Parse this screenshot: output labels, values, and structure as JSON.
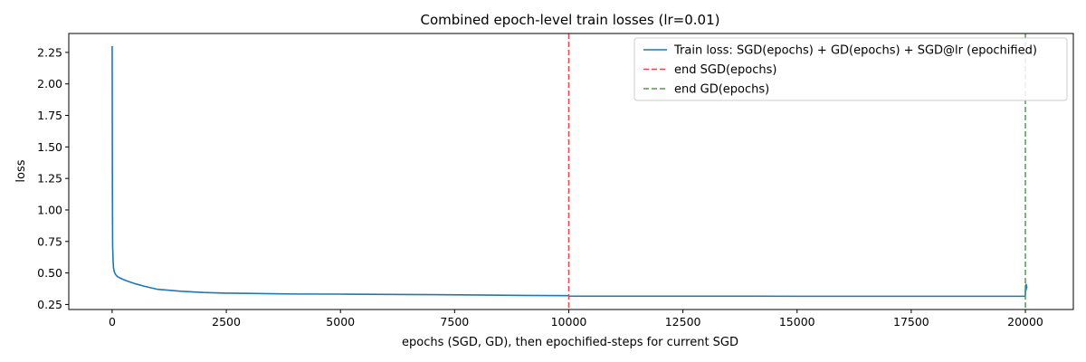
{
  "chart_data": {
    "type": "line",
    "title": "Combined epoch-level train losses (lr=0.01)",
    "xlabel": "epochs (SGD, GD), then epochified-steps for current SGD",
    "ylabel": "loss",
    "xlim": [
      -950,
      21050
    ],
    "ylim": [
      0.21,
      2.4
    ],
    "x_ticks": [
      0,
      2500,
      5000,
      7500,
      10000,
      12500,
      15000,
      17500,
      20000
    ],
    "y_ticks": [
      0.25,
      0.5,
      0.75,
      1.0,
      1.25,
      1.5,
      1.75,
      2.0,
      2.25
    ],
    "x_tick_labels": [
      "0",
      "2500",
      "5000",
      "7500",
      "10000",
      "12500",
      "15000",
      "17500",
      "20000"
    ],
    "y_tick_labels": [
      "0.25",
      "0.50",
      "0.75",
      "1.00",
      "1.25",
      "1.50",
      "1.75",
      "2.00",
      "2.25"
    ],
    "grid": false,
    "legend_position": "top-right",
    "series": [
      {
        "name": "Train loss: SGD(epochs) + GD(epochs) + SGD@lr (epochified)",
        "color": "#1f77b4",
        "style": "solid",
        "x": [
          0,
          5,
          10,
          20,
          30,
          50,
          80,
          120,
          200,
          300,
          500,
          700,
          1000,
          1500,
          2000,
          2500,
          3000,
          3500,
          4000,
          5000,
          6000,
          7000,
          8000,
          9000,
          9990,
          10000,
          11000,
          12000,
          13000,
          14000,
          15000,
          16000,
          17000,
          18000,
          19000,
          19990,
          20000,
          20005,
          20010,
          20015,
          20020,
          20025,
          20030
        ],
        "y": [
          2.3,
          1.2,
          0.72,
          0.6,
          0.54,
          0.505,
          0.485,
          0.47,
          0.455,
          0.44,
          0.415,
          0.395,
          0.37,
          0.355,
          0.345,
          0.34,
          0.338,
          0.335,
          0.333,
          0.332,
          0.33,
          0.328,
          0.325,
          0.322,
          0.32,
          0.316,
          0.316,
          0.316,
          0.316,
          0.316,
          0.315,
          0.315,
          0.315,
          0.315,
          0.315,
          0.315,
          0.33,
          0.4,
          0.36,
          0.41,
          0.37,
          0.4,
          0.38
        ]
      },
      {
        "name": "end SGD(epochs)",
        "color": "#e8474e",
        "style": "dashed",
        "vline_x": 10000
      },
      {
        "name": "end GD(epochs)",
        "color": "#4e9e4e",
        "style": "dashed",
        "vline_x": 20000
      }
    ]
  }
}
